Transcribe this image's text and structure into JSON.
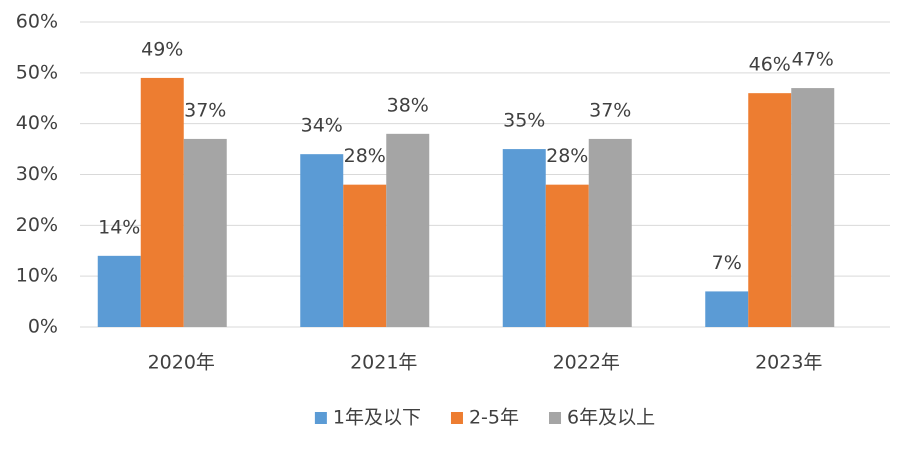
{
  "chart_data": {
    "type": "bar",
    "categories": [
      "2020年",
      "2021年",
      "2022年",
      "2023年"
    ],
    "series": [
      {
        "name": "1年及以下",
        "color": "#5b9bd5",
        "values": [
          14,
          34,
          35,
          7
        ],
        "value_labels": [
          "14%",
          "34%",
          "35%",
          "7%"
        ]
      },
      {
        "name": "2-5年",
        "color": "#ed7d31",
        "values": [
          49,
          28,
          28,
          46
        ],
        "value_labels": [
          "49%",
          "28%",
          "28%",
          "46%"
        ]
      },
      {
        "name": "6年及以上",
        "color": "#a5a5a5",
        "values": [
          37,
          38,
          37,
          47
        ],
        "value_labels": [
          "37%",
          "38%",
          "37%",
          "47%"
        ]
      }
    ],
    "ylim": [
      0,
      60
    ],
    "yticks": [
      {
        "value": 0,
        "label": "0%"
      },
      {
        "value": 10,
        "label": "10%"
      },
      {
        "value": 20,
        "label": "20%"
      },
      {
        "value": 30,
        "label": "30%"
      },
      {
        "value": 40,
        "label": "40%"
      },
      {
        "value": 50,
        "label": "50%"
      },
      {
        "value": 60,
        "label": "60%"
      }
    ],
    "grid": true,
    "legend": "bottom"
  }
}
